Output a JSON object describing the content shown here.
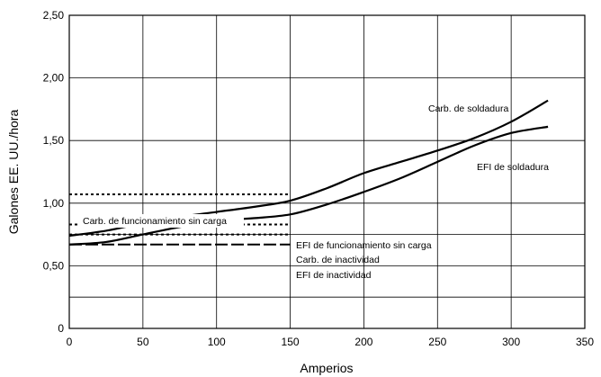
{
  "chart_data": {
    "type": "line",
    "title": "",
    "xlabel": "Amperios",
    "ylabel": "Galones EE. UU./hora",
    "xlim": [
      0,
      350
    ],
    "x_ticks": [
      0,
      50,
      100,
      150,
      200,
      250,
      300,
      350
    ],
    "x_tick_labels": [
      "0",
      "50",
      "100",
      "150",
      "200",
      "250",
      "300",
      "350"
    ],
    "y_ticks": [
      0,
      0.5,
      1.0,
      1.5,
      2.0,
      2.5
    ],
    "y_tick_labels": [
      "0",
      "0,50",
      "1,00",
      "1,50",
      "2,00",
      "2,50"
    ],
    "grid": true,
    "series": [
      {
        "name": "Carb. de soldadura",
        "style": "solid",
        "x": [
          0,
          25,
          50,
          75,
          100,
          125,
          150,
          175,
          200,
          225,
          250,
          275,
          300,
          325
        ],
        "y": [
          0.74,
          0.78,
          0.84,
          0.89,
          0.93,
          0.97,
          1.02,
          1.12,
          1.24,
          1.33,
          1.42,
          1.52,
          1.65,
          1.82
        ]
      },
      {
        "name": "EFI de soldadura",
        "style": "solid",
        "x": [
          0,
          25,
          50,
          75,
          100,
          125,
          150,
          175,
          200,
          225,
          250,
          275,
          300,
          325
        ],
        "y": [
          0.67,
          0.69,
          0.75,
          0.81,
          0.86,
          0.88,
          0.91,
          0.99,
          1.09,
          1.2,
          1.33,
          1.46,
          1.56,
          1.61
        ]
      },
      {
        "name": "Carb. de funcionamiento sin carga",
        "style": "dotted",
        "x": [
          0,
          150
        ],
        "y": [
          1.07,
          1.07
        ]
      },
      {
        "name": "EFI de funcionamiento sin carga",
        "style": "dotted",
        "x": [
          0,
          150
        ],
        "y": [
          0.83,
          0.83
        ]
      },
      {
        "name": "Carb. de inactividad",
        "style": "dotted",
        "x": [
          0,
          150
        ],
        "y": [
          0.75,
          0.75
        ]
      },
      {
        "name": "EFI de inactividad",
        "style": "dashed",
        "x": [
          0,
          150
        ],
        "y": [
          0.67,
          0.67
        ]
      }
    ]
  },
  "colors": {
    "line": "#000000",
    "grid": "#000000",
    "background": "#ffffff"
  }
}
